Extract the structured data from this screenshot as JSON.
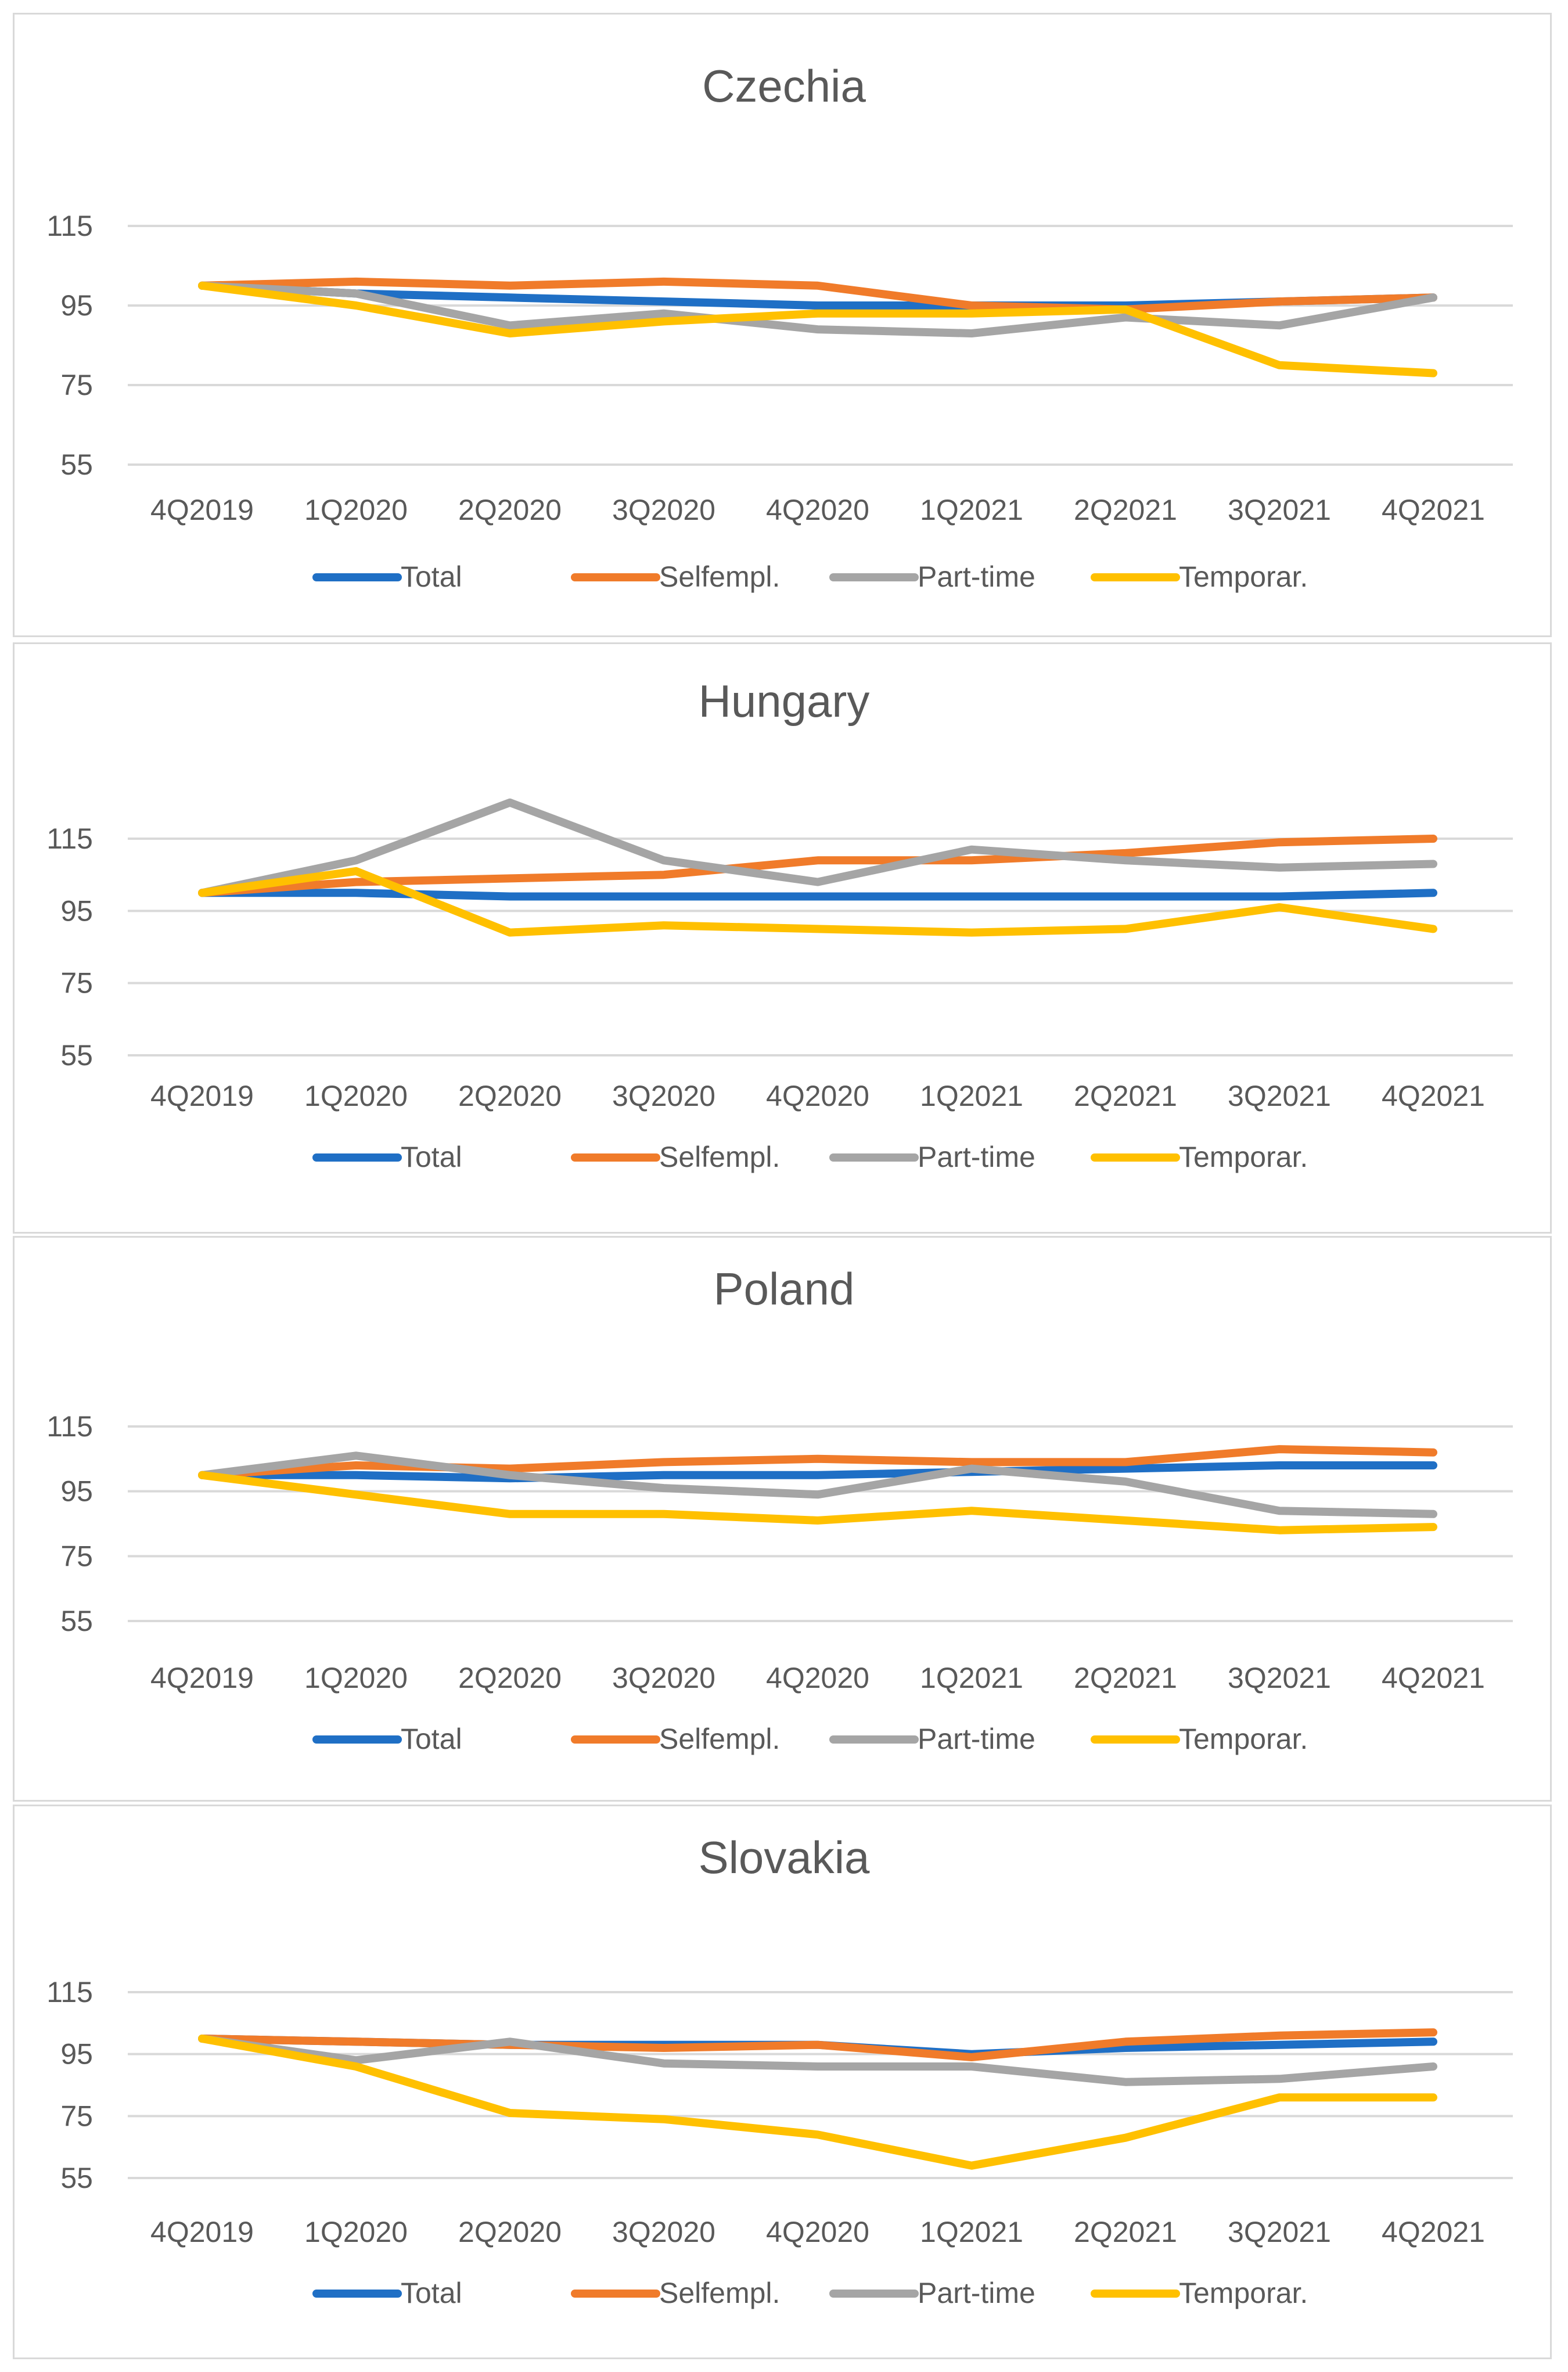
{
  "colors": {
    "Total": "#1f6fc5",
    "Selfempl.": "#f07b2a",
    "Part-time": "#a5a5a5",
    "Temporar.": "#ffc000"
  },
  "chart_data": [
    {
      "type": "line",
      "title": "Czechia",
      "categories": [
        "4Q2019",
        "1Q2020",
        "2Q2020",
        "3Q2020",
        "4Q2020",
        "1Q2021",
        "2Q2021",
        "3Q2021",
        "4Q2021"
      ],
      "yticks": [
        115,
        95,
        75,
        55
      ],
      "ylim": [
        55,
        115
      ],
      "legend": "bottom",
      "series": [
        {
          "name": "Total",
          "values": [
            100,
            98,
            97,
            96,
            95,
            95,
            95,
            96,
            97
          ]
        },
        {
          "name": "Selfempl.",
          "values": [
            100,
            101,
            100,
            101,
            100,
            95,
            94,
            96,
            97
          ]
        },
        {
          "name": "Part-time",
          "values": [
            100,
            98,
            90,
            93,
            89,
            88,
            92,
            90,
            97
          ]
        },
        {
          "name": "Temporar.",
          "values": [
            100,
            95,
            88,
            91,
            93,
            93,
            94,
            80,
            78
          ]
        }
      ]
    },
    {
      "type": "line",
      "title": "Hungary",
      "categories": [
        "4Q2019",
        "1Q2020",
        "2Q2020",
        "3Q2020",
        "4Q2020",
        "1Q2021",
        "2Q2021",
        "3Q2021",
        "4Q2021"
      ],
      "yticks": [
        115,
        95,
        75,
        55
      ],
      "ylim": [
        55,
        115
      ],
      "legend": "bottom",
      "series": [
        {
          "name": "Total",
          "values": [
            100,
            100,
            99,
            99,
            99,
            99,
            99,
            99,
            100
          ]
        },
        {
          "name": "Selfempl.",
          "values": [
            100,
            103,
            104,
            105,
            109,
            109,
            111,
            114,
            115
          ]
        },
        {
          "name": "Part-time",
          "values": [
            100,
            109,
            125,
            109,
            103,
            112,
            109,
            107,
            108
          ]
        },
        {
          "name": "Temporar.",
          "values": [
            100,
            106,
            89,
            91,
            90,
            89,
            90,
            96,
            90
          ]
        }
      ]
    },
    {
      "type": "line",
      "title": "Poland",
      "categories": [
        "4Q2019",
        "1Q2020",
        "2Q2020",
        "3Q2020",
        "4Q2020",
        "1Q2021",
        "2Q2021",
        "3Q2021",
        "4Q2021"
      ],
      "yticks": [
        115,
        95,
        75,
        55
      ],
      "ylim": [
        55,
        115
      ],
      "legend": "bottom",
      "series": [
        {
          "name": "Total",
          "values": [
            100,
            100,
            99,
            100,
            100,
            101,
            102,
            103,
            103
          ]
        },
        {
          "name": "Selfempl.",
          "values": [
            100,
            103,
            102,
            104,
            105,
            104,
            104,
            108,
            107
          ]
        },
        {
          "name": "Part-time",
          "values": [
            100,
            106,
            100,
            96,
            94,
            102,
            98,
            89,
            88
          ]
        },
        {
          "name": "Temporar.",
          "values": [
            100,
            94,
            88,
            88,
            86,
            89,
            86,
            83,
            84
          ]
        }
      ]
    },
    {
      "type": "line",
      "title": "Slovakia",
      "categories": [
        "4Q2019",
        "1Q2020",
        "2Q2020",
        "3Q2020",
        "4Q2020",
        "1Q2021",
        "2Q2021",
        "3Q2021",
        "4Q2021"
      ],
      "yticks": [
        115,
        95,
        75,
        55
      ],
      "ylim": [
        55,
        115
      ],
      "legend": "bottom",
      "series": [
        {
          "name": "Total",
          "values": [
            100,
            99,
            98,
            98,
            98,
            95,
            97,
            98,
            99
          ]
        },
        {
          "name": "Selfempl.",
          "values": [
            100,
            99,
            98,
            97,
            98,
            94,
            99,
            101,
            102
          ]
        },
        {
          "name": "Part-time",
          "values": [
            100,
            93,
            99,
            92,
            91,
            91,
            86,
            87,
            91
          ]
        },
        {
          "name": "Temporar.",
          "values": [
            100,
            91,
            76,
            74,
            69,
            59,
            68,
            81,
            81
          ]
        }
      ]
    }
  ]
}
